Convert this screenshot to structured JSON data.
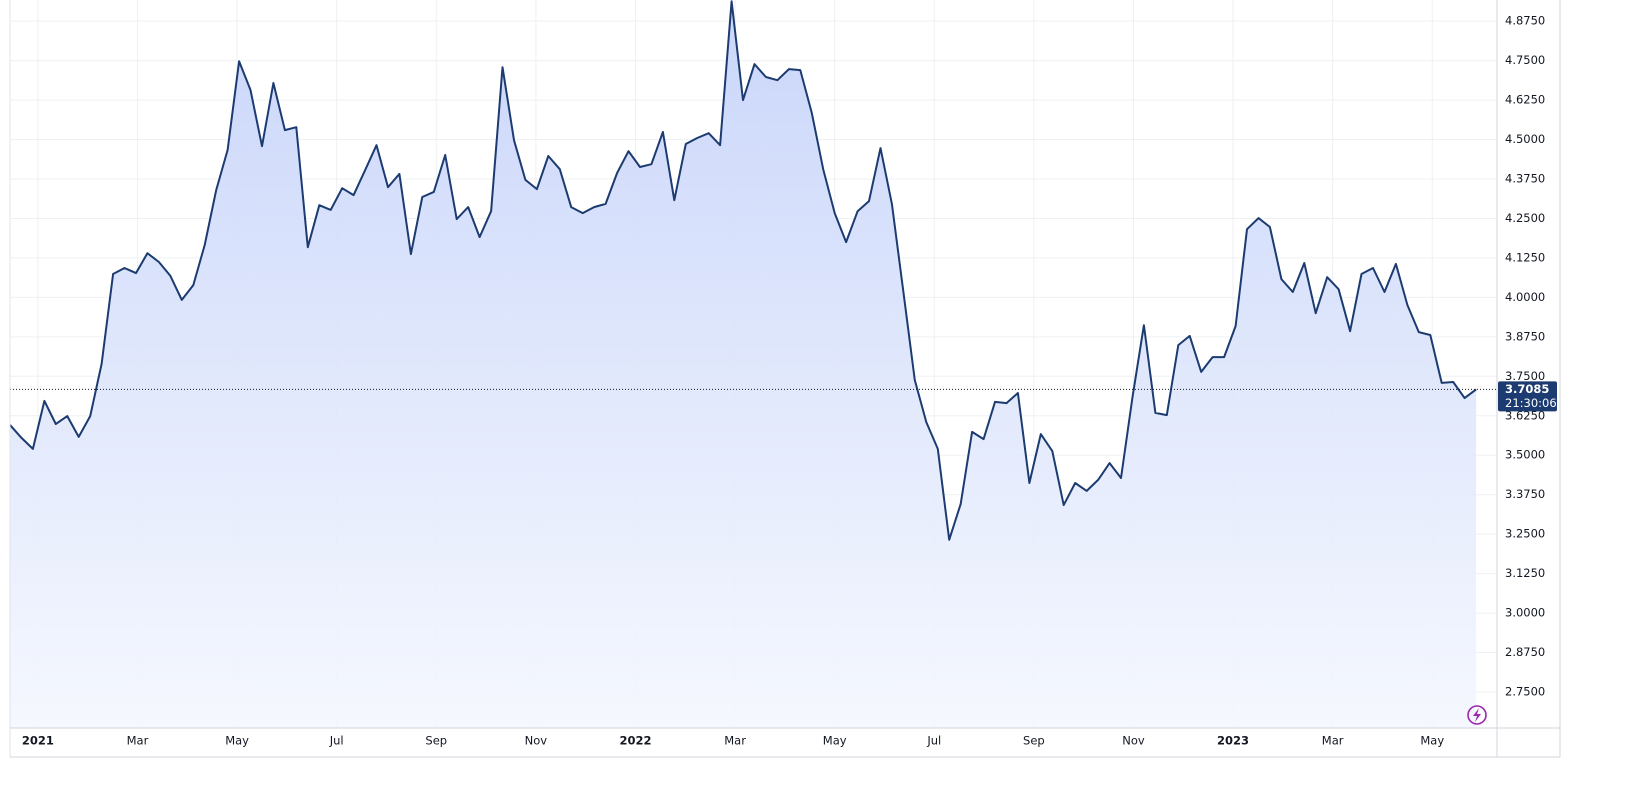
{
  "chart_data": {
    "type": "line",
    "x": [
      -0.56,
      -0.33,
      -0.1,
      0.13,
      0.36,
      0.59,
      0.82,
      1.05,
      1.28,
      1.51,
      1.74,
      1.97,
      2.2,
      2.43,
      2.66,
      2.89,
      3.12,
      3.35,
      3.58,
      3.81,
      4.04,
      4.27,
      4.5,
      4.73,
      4.96,
      5.19,
      5.42,
      5.65,
      5.88,
      6.11,
      6.34,
      6.57,
      6.8,
      7.03,
      7.26,
      7.49,
      7.72,
      7.95,
      8.18,
      8.41,
      8.64,
      8.87,
      9.1,
      9.33,
      9.56,
      9.79,
      10.02,
      10.25,
      10.48,
      10.71,
      10.94,
      11.17,
      11.4,
      11.63,
      11.86,
      12.09,
      12.32,
      12.55,
      12.78,
      13.01,
      13.24,
      13.47,
      13.7,
      13.93,
      14.16,
      14.39,
      14.62,
      14.85,
      15.08,
      15.31,
      15.54,
      15.77,
      16,
      16.23,
      16.46,
      16.69,
      16.92,
      17.15,
      17.38,
      17.61,
      17.84,
      18.07,
      18.3,
      18.53,
      18.76,
      18.99,
      19.22,
      19.45,
      19.68,
      19.91,
      20.14,
      20.37,
      20.6,
      20.83,
      21.06,
      21.29,
      21.52,
      21.75,
      21.98,
      22.21,
      22.44,
      22.67,
      22.9,
      23.13,
      23.36,
      23.59,
      23.82,
      24.05,
      24.28,
      24.51,
      24.74,
      24.97,
      25.2,
      25.43,
      25.66,
      25.89,
      26.12,
      26.35,
      26.58,
      26.81,
      27.04,
      27.27,
      27.5,
      27.73,
      27.96,
      28.19,
      28.42,
      28.65,
      28.88
    ],
    "series": [
      {
        "color": "#1c3b70",
        "values": [
          3.596,
          3.555,
          3.52,
          3.672,
          3.599,
          3.624,
          3.558,
          3.624,
          3.789,
          4.074,
          4.093,
          4.077,
          4.14,
          4.112,
          4.068,
          3.992,
          4.039,
          4.166,
          4.34,
          4.467,
          4.748,
          4.657,
          4.479,
          4.679,
          4.53,
          4.539,
          4.159,
          4.292,
          4.277,
          4.346,
          4.324,
          4.403,
          4.482,
          4.349,
          4.391,
          4.137,
          4.318,
          4.334,
          4.451,
          4.248,
          4.286,
          4.191,
          4.273,
          4.729,
          4.498,
          4.372,
          4.343,
          4.448,
          4.406,
          4.286,
          4.267,
          4.286,
          4.296,
          4.394,
          4.463,
          4.413,
          4.422,
          4.524,
          4.308,
          4.486,
          4.505,
          4.52,
          4.482,
          4.938,
          4.625,
          4.739,
          4.698,
          4.688,
          4.723,
          4.72,
          4.584,
          4.406,
          4.267,
          4.175,
          4.273,
          4.305,
          4.473,
          4.296,
          4.017,
          3.738,
          3.605,
          3.52,
          3.232,
          3.346,
          3.574,
          3.551,
          3.669,
          3.665,
          3.697,
          3.412,
          3.567,
          3.513,
          3.342,
          3.412,
          3.387,
          3.422,
          3.475,
          3.428,
          3.684,
          3.912,
          3.634,
          3.627,
          3.849,
          3.878,
          3.764,
          3.811,
          3.811,
          3.909,
          4.216,
          4.251,
          4.223,
          4.058,
          4.017,
          4.109,
          3.95,
          4.064,
          4.026,
          3.893,
          4.074,
          4.093,
          4.017,
          4.106,
          3.976,
          3.89,
          3.881,
          3.729,
          3.732,
          3.681,
          3.7085
        ]
      }
    ],
    "xlim": [
      -0.56,
      29.3
    ],
    "xticks": [
      {
        "value": 0,
        "label": "2021"
      },
      {
        "value": 2,
        "label": "Mar"
      },
      {
        "value": 4,
        "label": "May"
      },
      {
        "value": 6,
        "label": "Jul"
      },
      {
        "value": 8,
        "label": "Sep"
      },
      {
        "value": 10,
        "label": "Nov"
      },
      {
        "value": 12,
        "label": "2022"
      },
      {
        "value": 14,
        "label": "Mar"
      },
      {
        "value": 16,
        "label": "May"
      },
      {
        "value": 18,
        "label": "Jul"
      },
      {
        "value": 20,
        "label": "Sep"
      },
      {
        "value": 22,
        "label": "Nov"
      },
      {
        "value": 24,
        "label": "2023"
      },
      {
        "value": 26,
        "label": "Mar"
      },
      {
        "value": 28,
        "label": "May"
      }
    ],
    "ylim": [
      2.636,
      4.942
    ],
    "yticks": [
      {
        "value": 2.75,
        "label": "2.7500"
      },
      {
        "value": 2.875,
        "label": "2.8750"
      },
      {
        "value": 3,
        "label": "3.0000"
      },
      {
        "value": 3.125,
        "label": "3.1250"
      },
      {
        "value": 3.25,
        "label": "3.2500"
      },
      {
        "value": 3.375,
        "label": "3.3750"
      },
      {
        "value": 3.5,
        "label": "3.5000"
      },
      {
        "value": 3.625,
        "label": "3.6250"
      },
      {
        "value": 3.75,
        "label": "3.7500"
      },
      {
        "value": 3.875,
        "label": "3.8750"
      },
      {
        "value": 4,
        "label": "4.0000"
      },
      {
        "value": 4.125,
        "label": "4.1250"
      },
      {
        "value": 4.25,
        "label": "4.2500"
      },
      {
        "value": 4.375,
        "label": "4.3750"
      },
      {
        "value": 4.5,
        "label": "4.5000"
      },
      {
        "value": 4.625,
        "label": "4.6250"
      },
      {
        "value": 4.75,
        "label": "4.7500"
      },
      {
        "value": 4.875,
        "label": "4.8750"
      }
    ],
    "grid": true,
    "last_price": 3.7085,
    "countdown": "21:30:06"
  }
}
